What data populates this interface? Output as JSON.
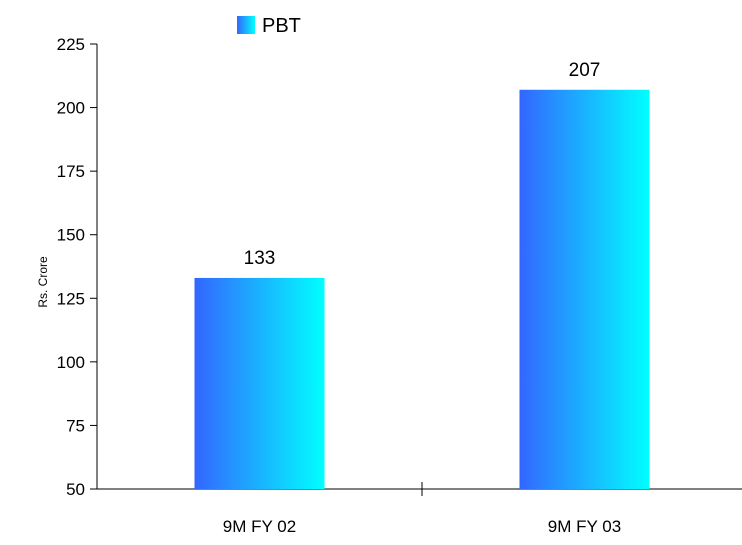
{
  "chart_data": {
    "type": "bar",
    "title": "",
    "xlabel": "",
    "ylabel": "Rs. Crore",
    "categories": [
      "9M FY 02",
      "9M FY 03"
    ],
    "series": [
      {
        "name": "PBT",
        "values": [
          133,
          207
        ],
        "data_labels": [
          "133",
          "207"
        ],
        "gradient": [
          "#3366ff",
          "#00ffff"
        ]
      }
    ],
    "ylim": [
      50,
      225
    ],
    "yticks": [
      50,
      75,
      100,
      125,
      150,
      175,
      200,
      225
    ],
    "ytick_labels": [
      "50",
      "75",
      "100",
      "125",
      "150",
      "175",
      "200",
      "225"
    ],
    "grid": false,
    "legend": {
      "position": "top-center"
    }
  }
}
